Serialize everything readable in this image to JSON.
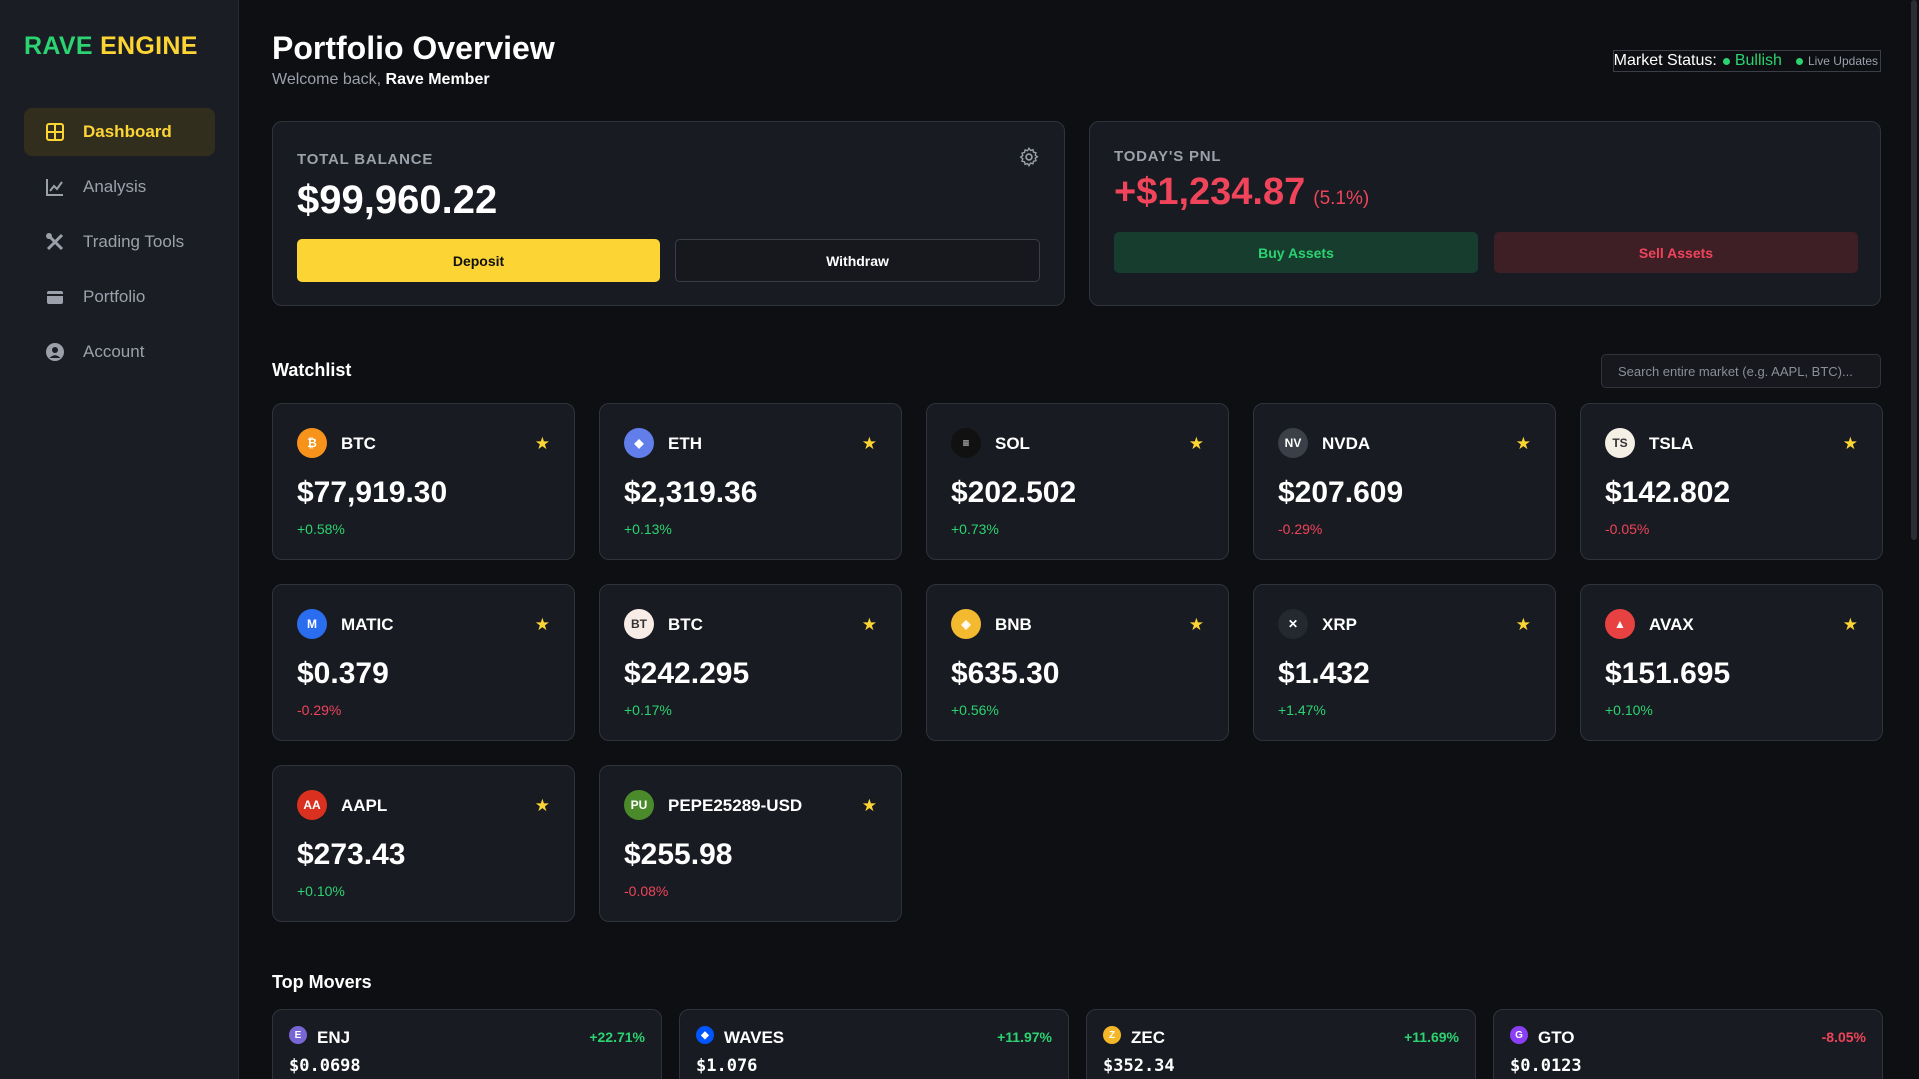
{
  "brand": {
    "word1": "RAVE",
    "word2": "ENGINE"
  },
  "sidebar": {
    "items": [
      {
        "label": "Dashboard",
        "icon": "dashboard-grid-icon",
        "active": true
      },
      {
        "label": "Analysis",
        "icon": "line-chart-icon"
      },
      {
        "label": "Trading Tools",
        "icon": "tools-icon"
      },
      {
        "label": "Portfolio",
        "icon": "wallet-icon"
      },
      {
        "label": "Account",
        "icon": "user-circle-icon"
      }
    ]
  },
  "header": {
    "title": "Portfolio Overview",
    "welcome_prefix": "Welcome back,",
    "user_name": "Rave Member",
    "market_status_label": "Market Status:",
    "market_status_value": "Bullish",
    "live_label": "Live Updates"
  },
  "balance": {
    "label": "TOTAL BALANCE",
    "value": "$99,960.22",
    "deposit_label": "Deposit",
    "withdraw_label": "Withdraw"
  },
  "pnl": {
    "label": "TODAY'S PNL",
    "value": "+$1,234.87",
    "percent": "(5.1%)",
    "buy_label": "Buy Assets",
    "sell_label": "Sell Assets"
  },
  "watchlist": {
    "title": "Watchlist",
    "search_placeholder": "Search entire market (e.g. AAPL, BTC)...",
    "items": [
      {
        "symbol": "BTC",
        "price": "$77,919.30",
        "change": "+0.58%",
        "dir": "up",
        "icon_text": "₿",
        "icon_color": "#f7931a"
      },
      {
        "symbol": "ETH",
        "price": "$2,319.36",
        "change": "+0.13%",
        "dir": "up",
        "icon_text": "◆",
        "icon_color": "#627eea"
      },
      {
        "symbol": "SOL",
        "price": "$202.502",
        "change": "+0.73%",
        "dir": "up",
        "icon_text": "≡",
        "icon_color": "#111111"
      },
      {
        "symbol": "NVDA",
        "price": "$207.609",
        "change": "-0.29%",
        "dir": "down",
        "icon_text": "NV",
        "icon_color": "#3a3f48"
      },
      {
        "symbol": "TSLA",
        "price": "$142.802",
        "change": "-0.05%",
        "dir": "down",
        "icon_text": "TS",
        "icon_color": "#f4f0e6"
      },
      {
        "symbol": "MATIC",
        "price": "$0.379",
        "change": "-0.29%",
        "dir": "down",
        "icon_text": "M",
        "icon_color": "#2b6def"
      },
      {
        "symbol": "BTC",
        "price": "$242.295",
        "change": "+0.17%",
        "dir": "up",
        "icon_text": "BT",
        "icon_color": "#f8ece6"
      },
      {
        "symbol": "BNB",
        "price": "$635.30",
        "change": "+0.56%",
        "dir": "up",
        "icon_text": "◈",
        "icon_color": "#f3ba2f"
      },
      {
        "symbol": "XRP",
        "price": "$1.432",
        "change": "+1.47%",
        "dir": "up",
        "icon_text": "✕",
        "icon_color": "#23292f"
      },
      {
        "symbol": "AVAX",
        "price": "$151.695",
        "change": "+0.10%",
        "dir": "up",
        "icon_text": "▲",
        "icon_color": "#e84142"
      },
      {
        "symbol": "AAPL",
        "price": "$273.43",
        "change": "+0.10%",
        "dir": "up",
        "icon_text": "AA",
        "icon_color": "#d9301f"
      },
      {
        "symbol": "PEPE25289-USD",
        "price": "$255.98",
        "change": "-0.08%",
        "dir": "down",
        "icon_text": "PU",
        "icon_color": "#4a8a2a"
      }
    ]
  },
  "top_movers": {
    "title": "Top Movers",
    "items": [
      {
        "symbol": "ENJ",
        "price": "$0.0698",
        "change": "+22.71%",
        "dir": "up",
        "icon_text": "E",
        "icon_color": "#7866d5"
      },
      {
        "symbol": "WAVES",
        "price": "$1.076",
        "change": "+11.97%",
        "dir": "up",
        "icon_text": "◆",
        "icon_color": "#0055ff"
      },
      {
        "symbol": "ZEC",
        "price": "$352.34",
        "change": "+11.69%",
        "dir": "up",
        "icon_text": "Z",
        "icon_color": "#f4b728"
      },
      {
        "symbol": "GTO",
        "price": "$0.0123",
        "change": "-8.05%",
        "dir": "down",
        "icon_text": "G",
        "icon_color": "#8b3ff5"
      }
    ]
  },
  "colors": {
    "accent": "#fcd535",
    "up": "#2bd371",
    "down": "#f0445b",
    "background": "#0e0f12",
    "card": "#181b21"
  }
}
